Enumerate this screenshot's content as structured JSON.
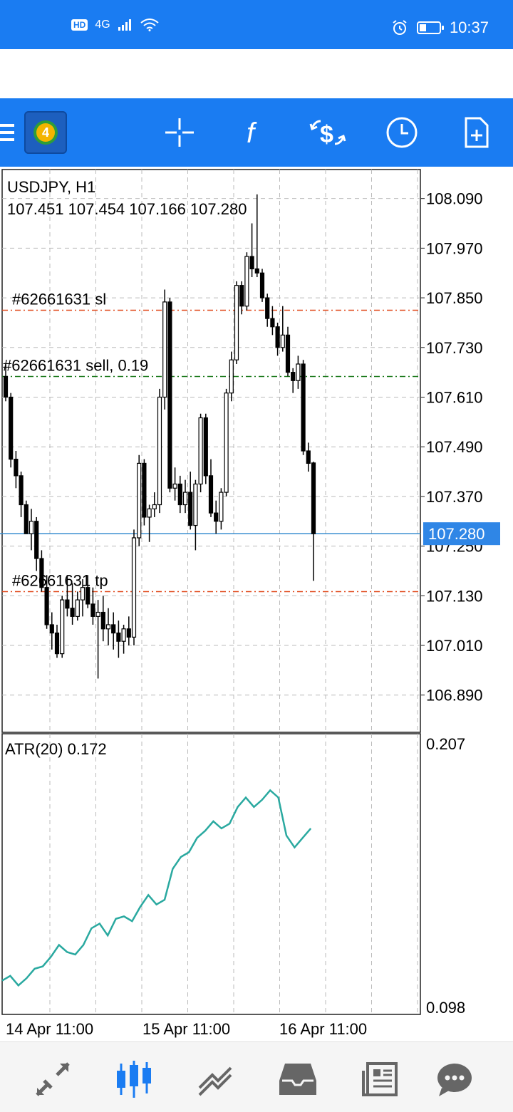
{
  "status_bar": {
    "network": "4G",
    "hd": "HD",
    "time": "10:37",
    "battery_level": 0.35
  },
  "toolbar": {
    "items": [
      "menu-icon",
      "app-logo",
      "crosshair-icon",
      "indicators-icon",
      "trade-icon",
      "period-icon",
      "new-document-icon"
    ]
  },
  "chart": {
    "symbol": "USDJPY, H1",
    "ohlc": "107.451 107.454 107.166 107.280",
    "price_ticks": [
      "108.090",
      "107.970",
      "107.850",
      "107.730",
      "107.610",
      "107.490",
      "107.370",
      "107.250",
      "107.130",
      "107.010",
      "106.890"
    ],
    "current_price": "107.280",
    "orders": [
      {
        "label": "#62661631 sl",
        "price": 107.82,
        "color": "#e0491c"
      },
      {
        "label": "#62661631 sell, 0.19",
        "price": 107.66,
        "color": "#1c7a1c"
      },
      {
        "label": "#62661631 tp",
        "price": 107.14,
        "color": "#e0491c"
      }
    ],
    "indicator_label": "ATR(20) 0.172",
    "indicator_ticks": [
      "0.207",
      "0.098"
    ],
    "time_labels": [
      "14 Apr 11:00",
      "15 Apr 11:00",
      "16 Apr 11:00"
    ],
    "colors": {
      "current_line": "#3a8fd0",
      "current_tag": "#2f86e6",
      "atr_line": "#2aa9a0"
    }
  },
  "chart_data": {
    "type": "line",
    "title": "USDJPY, H1",
    "ylim": [
      106.8,
      108.16
    ],
    "candles": [
      [
        107.66,
        107.69,
        107.6,
        107.61
      ],
      [
        107.61,
        107.62,
        107.44,
        107.46
      ],
      [
        107.46,
        107.48,
        107.39,
        107.42
      ],
      [
        107.42,
        107.43,
        107.32,
        107.35
      ],
      [
        107.35,
        107.36,
        107.28,
        107.28
      ],
      [
        107.28,
        107.34,
        107.24,
        107.31
      ],
      [
        107.31,
        107.32,
        107.19,
        107.22
      ],
      [
        107.22,
        107.24,
        107.14,
        107.15
      ],
      [
        107.15,
        107.18,
        107.05,
        107.06
      ],
      [
        107.06,
        107.09,
        107.0,
        107.04
      ],
      [
        107.04,
        107.06,
        106.98,
        106.99
      ],
      [
        106.99,
        107.13,
        106.98,
        107.12
      ],
      [
        107.12,
        107.18,
        107.08,
        107.1
      ],
      [
        107.1,
        107.16,
        107.06,
        107.08
      ],
      [
        107.08,
        107.14,
        107.07,
        107.12
      ],
      [
        107.12,
        107.17,
        107.08,
        107.15
      ],
      [
        107.15,
        107.18,
        107.1,
        107.11
      ],
      [
        107.11,
        107.15,
        107.06,
        107.08
      ],
      [
        107.08,
        107.12,
        106.93,
        107.09
      ],
      [
        107.09,
        107.13,
        107.02,
        107.05
      ],
      [
        107.05,
        107.1,
        107.01,
        107.06
      ],
      [
        107.06,
        107.09,
        107.0,
        107.04
      ],
      [
        107.04,
        107.07,
        106.98,
        107.02
      ],
      [
        107.02,
        107.06,
        106.99,
        107.05
      ],
      [
        107.05,
        107.08,
        107.01,
        107.03
      ],
      [
        107.03,
        107.29,
        107.01,
        107.27
      ],
      [
        107.27,
        107.47,
        107.25,
        107.45
      ],
      [
        107.45,
        107.46,
        107.3,
        107.32
      ],
      [
        107.32,
        107.35,
        107.26,
        107.34
      ],
      [
        107.34,
        107.38,
        107.32,
        107.35
      ],
      [
        107.35,
        107.63,
        107.33,
        107.61
      ],
      [
        107.61,
        107.87,
        107.58,
        107.84
      ],
      [
        107.84,
        107.85,
        107.38,
        107.39
      ],
      [
        107.39,
        107.44,
        107.36,
        107.4
      ],
      [
        107.4,
        107.42,
        107.33,
        107.35
      ],
      [
        107.35,
        107.41,
        107.33,
        107.38
      ],
      [
        107.38,
        107.43,
        107.29,
        107.3
      ],
      [
        107.3,
        107.41,
        107.24,
        107.4
      ],
      [
        107.4,
        107.57,
        107.38,
        107.56
      ],
      [
        107.56,
        107.57,
        107.4,
        107.42
      ],
      [
        107.42,
        107.46,
        107.32,
        107.33
      ],
      [
        107.33,
        107.36,
        107.28,
        107.31
      ],
      [
        107.31,
        107.39,
        107.29,
        107.38
      ],
      [
        107.38,
        107.63,
        107.37,
        107.62
      ],
      [
        107.62,
        107.72,
        107.6,
        107.7
      ],
      [
        107.7,
        107.89,
        107.69,
        107.88
      ],
      [
        107.88,
        107.89,
        107.81,
        107.83
      ],
      [
        107.83,
        107.96,
        107.82,
        107.95
      ],
      [
        107.95,
        108.03,
        107.9,
        107.92
      ],
      [
        107.92,
        108.1,
        107.9,
        107.91
      ],
      [
        107.91,
        107.92,
        107.84,
        107.85
      ],
      [
        107.85,
        107.86,
        107.78,
        107.8
      ],
      [
        107.8,
        107.83,
        107.76,
        107.78
      ],
      [
        107.78,
        107.79,
        107.71,
        107.73
      ],
      [
        107.73,
        107.83,
        107.72,
        107.76
      ],
      [
        107.76,
        107.78,
        107.66,
        107.67
      ],
      [
        107.67,
        107.68,
        107.62,
        107.65
      ],
      [
        107.65,
        107.71,
        107.63,
        107.69
      ],
      [
        107.69,
        107.7,
        107.47,
        107.48
      ],
      [
        107.48,
        107.5,
        107.43,
        107.45
      ],
      [
        107.451,
        107.454,
        107.166,
        107.28
      ]
    ],
    "series": [
      {
        "values": [
          0.108,
          0.11,
          0.106,
          0.109,
          0.113,
          0.114,
          0.118,
          0.123,
          0.12,
          0.119,
          0.123,
          0.13,
          0.132,
          0.127,
          0.134,
          0.135,
          0.133,
          0.139,
          0.144,
          0.14,
          0.142,
          0.155,
          0.16,
          0.162,
          0.168,
          0.171,
          0.175,
          0.172,
          0.174,
          0.181,
          0.185,
          0.181,
          0.184,
          0.188,
          0.185,
          0.169,
          0.164,
          0.168,
          0.172
        ]
      }
    ]
  },
  "bottom_nav": {
    "items": [
      "quotes-icon",
      "chart-icon",
      "trade-icon",
      "history-icon",
      "news-icon",
      "messages-icon"
    ],
    "active": 1
  }
}
